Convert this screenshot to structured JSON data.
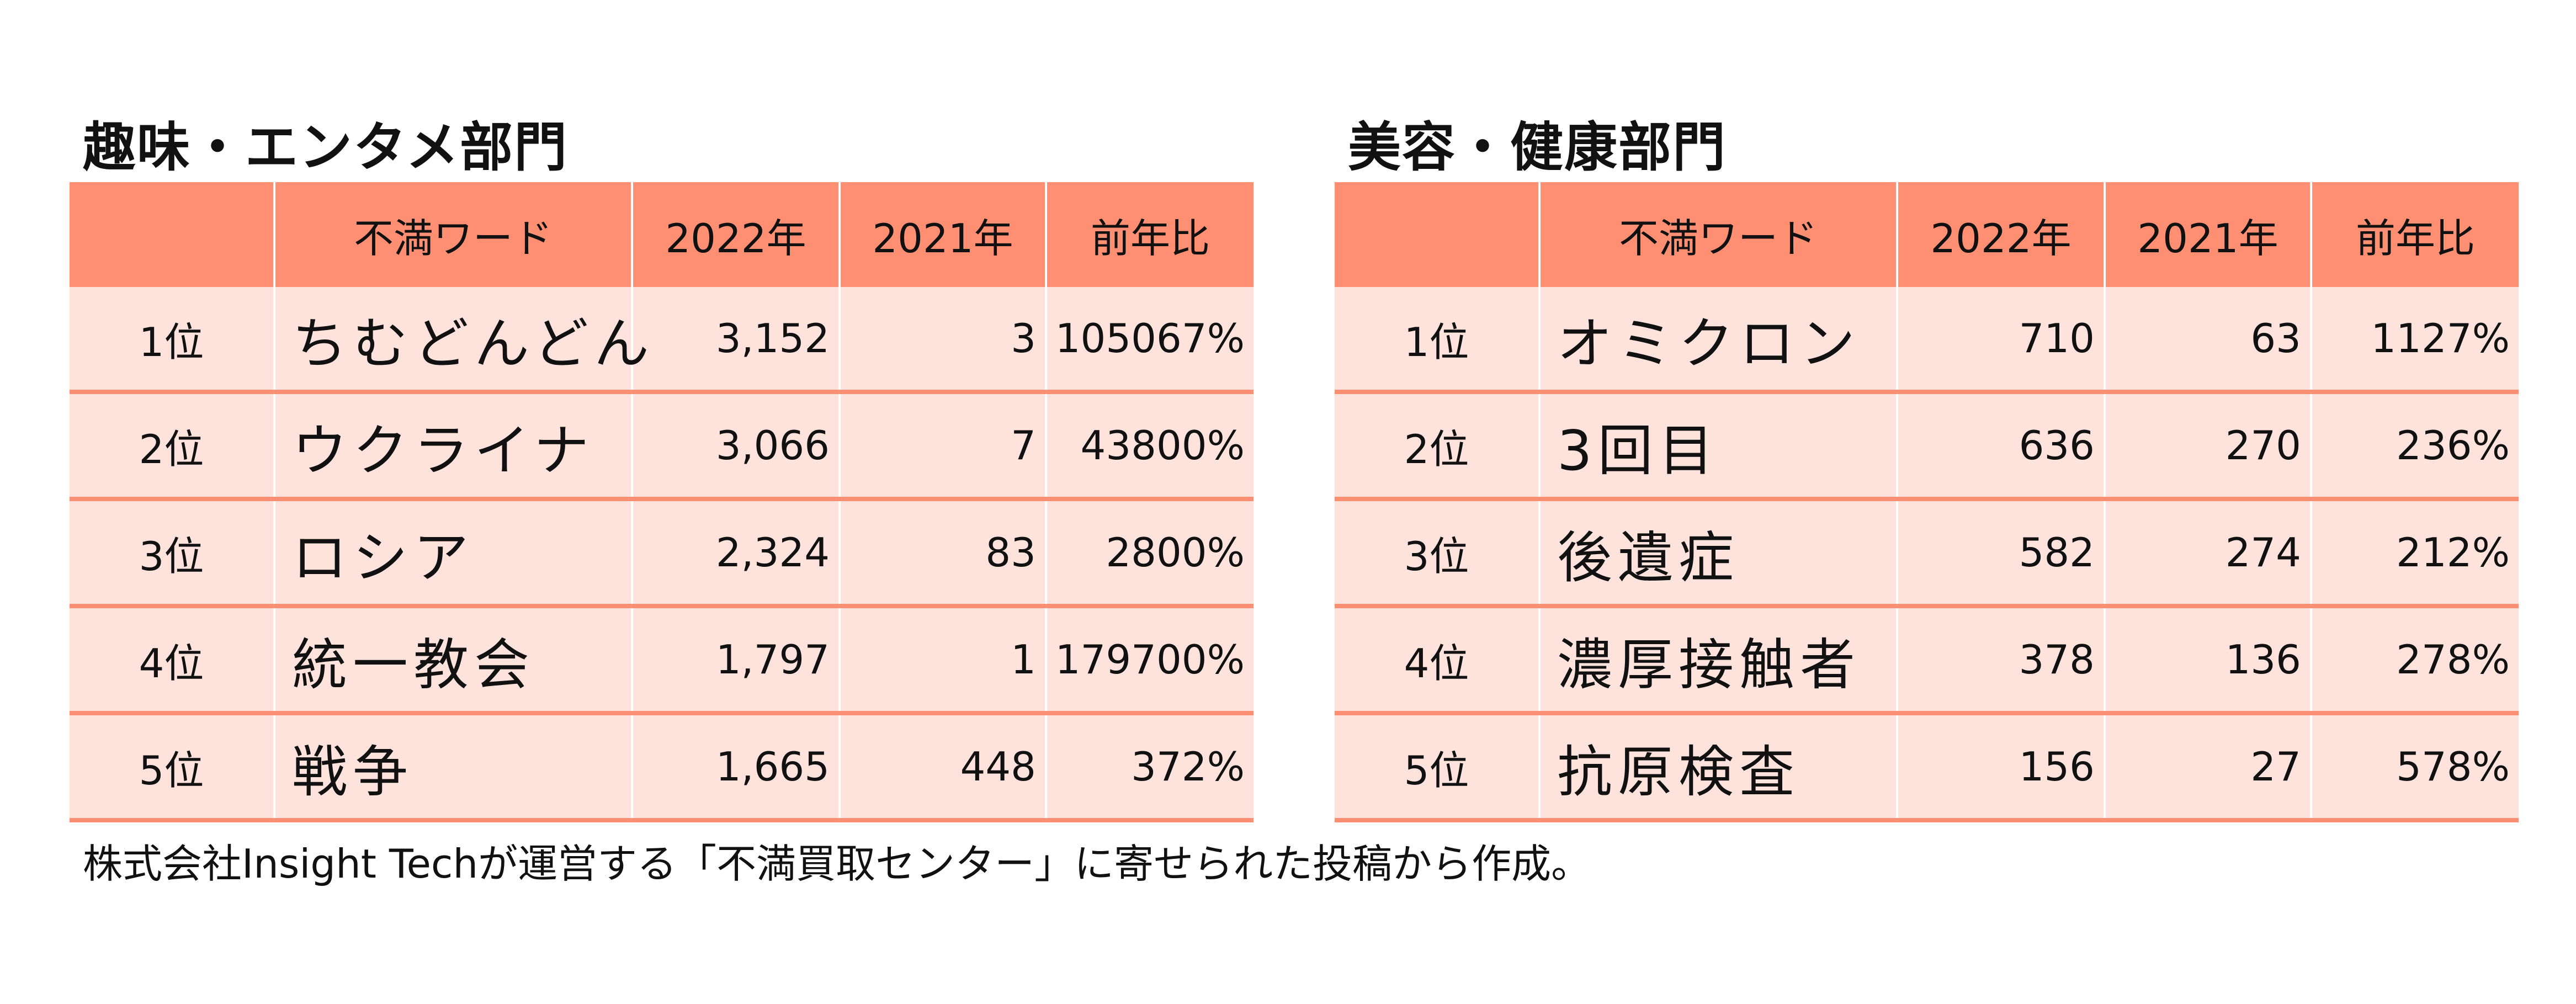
{
  "headers": {
    "rank": "",
    "word": "不満ワード",
    "y2022": "2022年",
    "y2021": "2021年",
    "yoy": "前年比"
  },
  "left": {
    "title": "趣味・エンタメ部門",
    "rows": [
      {
        "rank": "1位",
        "word": "ちむどんどん",
        "y2022": "3,152",
        "y2021": "3",
        "yoy": "105067%"
      },
      {
        "rank": "2位",
        "word": "ウクライナ",
        "y2022": "3,066",
        "y2021": "7",
        "yoy": "43800%"
      },
      {
        "rank": "3位",
        "word": "ロシア",
        "y2022": "2,324",
        "y2021": "83",
        "yoy": "2800%"
      },
      {
        "rank": "4位",
        "word": "統一教会",
        "y2022": "1,797",
        "y2021": "1",
        "yoy": "179700%"
      },
      {
        "rank": "5位",
        "word": "戦争",
        "y2022": "1,665",
        "y2021": "448",
        "yoy": "372%"
      }
    ]
  },
  "right": {
    "title": "美容・健康部門",
    "rows": [
      {
        "rank": "1位",
        "word": "オミクロン",
        "y2022": "710",
        "y2021": "63",
        "yoy": "1127%"
      },
      {
        "rank": "2位",
        "word": "3回目",
        "y2022": "636",
        "y2021": "270",
        "yoy": "236%"
      },
      {
        "rank": "3位",
        "word": "後遺症",
        "y2022": "582",
        "y2021": "274",
        "yoy": "212%"
      },
      {
        "rank": "4位",
        "word": "濃厚接触者",
        "y2022": "378",
        "y2021": "136",
        "yoy": "278%"
      },
      {
        "rank": "5位",
        "word": "抗原検査",
        "y2022": "156",
        "y2021": "27",
        "yoy": "578%"
      }
    ]
  },
  "footnote": "株式会社Insight Techが運営する「不満買取センター」に寄せられた投稿から作成。",
  "colors": {
    "header_bg": "#fe8f73",
    "row_bg": "#fee3dd",
    "row_divider": "#fb8f74"
  }
}
